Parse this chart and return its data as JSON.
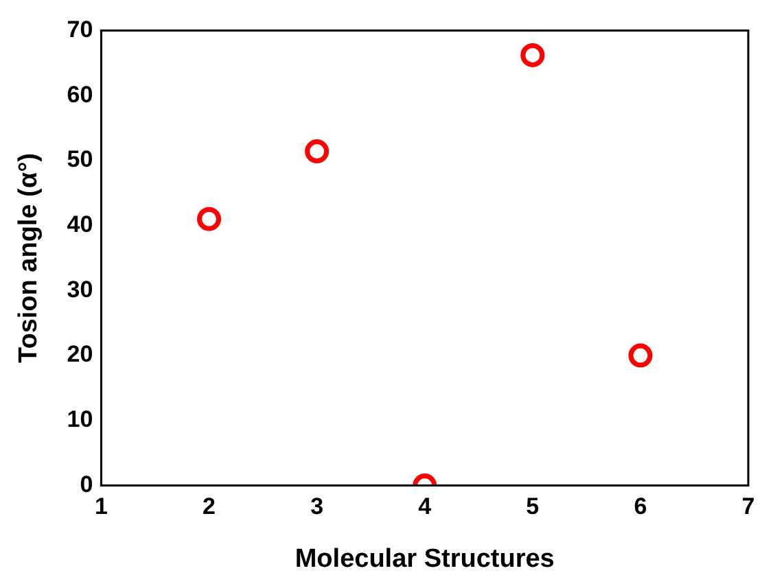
{
  "chart_data": {
    "type": "scatter",
    "xlabel": "Molecular Structures",
    "ylabel": "Tosion angle (α°)",
    "x": [
      2,
      3,
      4,
      5,
      6
    ],
    "values": [
      41,
      51.4,
      0,
      66.2,
      20
    ],
    "color": "#ff0000",
    "marker": "circle",
    "xlim": [
      1,
      7
    ],
    "xticks": [
      1,
      2,
      3,
      4,
      5,
      6,
      7
    ],
    "ylim": [
      0,
      70
    ],
    "yticks": [
      0,
      10,
      20,
      30,
      40,
      50,
      60,
      70
    ],
    "grid": false,
    "legend": false
  }
}
